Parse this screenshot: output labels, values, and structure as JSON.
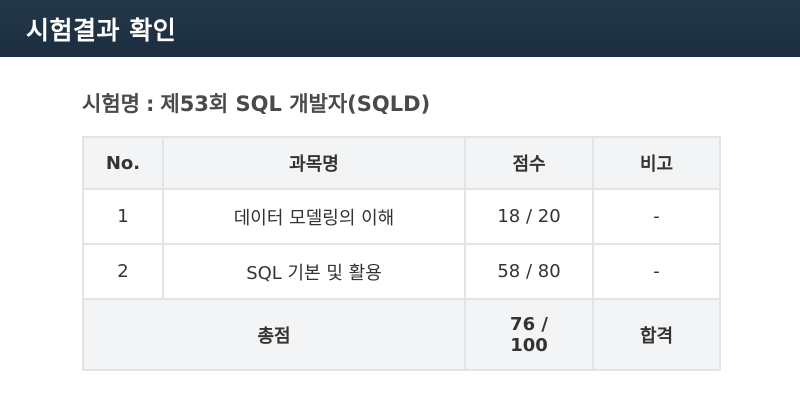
{
  "header": {
    "title": "시험결과 확인"
  },
  "exam": {
    "label": "시험명",
    "separator": ":",
    "name": "제53회 SQL 개발자(SQLD)"
  },
  "table": {
    "columns": [
      "No.",
      "과목명",
      "점수",
      "비고"
    ],
    "rows": [
      {
        "no": "1",
        "subject": "데이터 모델링의 이해",
        "score": "18 / 20",
        "note": "-"
      },
      {
        "no": "2",
        "subject": "SQL 기본 및 활용",
        "score": "58 / 80",
        "note": "-"
      }
    ],
    "total": {
      "label": "총점",
      "score": "76 / 100",
      "result": "합격"
    }
  }
}
